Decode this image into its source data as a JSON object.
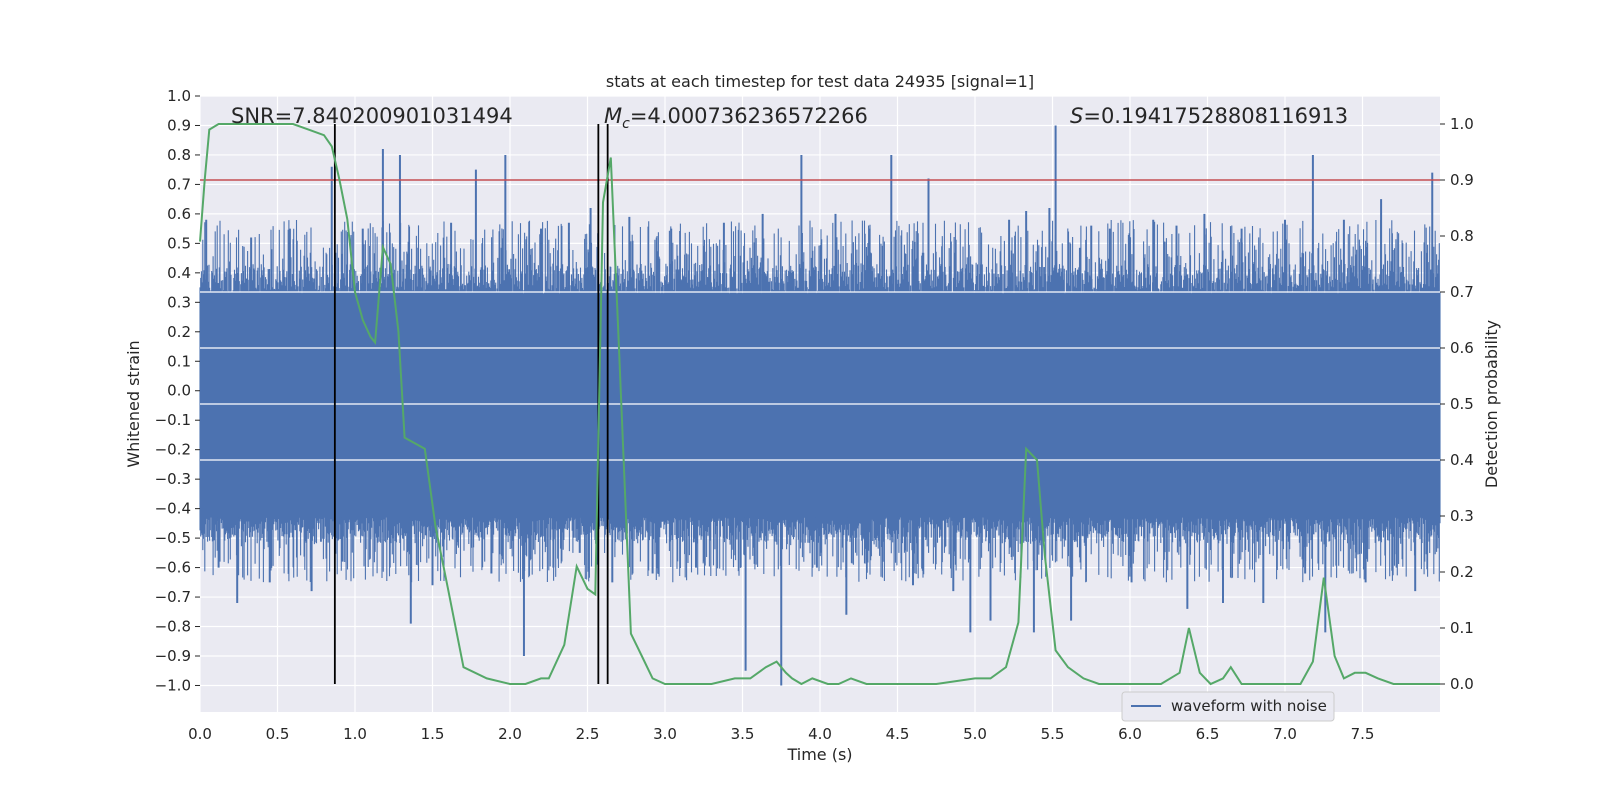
{
  "chart_data": {
    "type": "line",
    "title": "stats at each timestep for test data 24935 [signal=1]",
    "xlabel": "Time (s)",
    "ylabel": "Whitened strain",
    "y2label": "Detection probability",
    "xlim": [
      0.0,
      8.0
    ],
    "ylim": [
      -1.09,
      1.0
    ],
    "y2lim": [
      -0.05,
      1.05
    ],
    "xticks": [
      "0.0",
      "0.5",
      "1.0",
      "1.5",
      "2.0",
      "2.5",
      "3.0",
      "3.5",
      "4.0",
      "4.5",
      "5.0",
      "5.5",
      "6.0",
      "6.5",
      "7.0",
      "7.5"
    ],
    "yticks": [
      "1.0",
      "0.9",
      "0.8",
      "0.7",
      "0.6",
      "0.5",
      "0.4",
      "0.3",
      "0.2",
      "0.1",
      "0.0",
      "−0.1",
      "−0.2",
      "−0.3",
      "−0.4",
      "−0.5",
      "−0.6",
      "−0.7",
      "−0.8",
      "−0.9",
      "−1.0"
    ],
    "y2ticks": [
      "1.0",
      "0.9",
      "0.8",
      "0.7",
      "0.6",
      "0.5",
      "0.4",
      "0.3",
      "0.2",
      "0.1",
      "0.0"
    ],
    "grid": true,
    "legend_position": "lower-right",
    "annotations": {
      "snr": "SNR=7.840200901031494",
      "mc_symbol": "M",
      "mc_sub": "c",
      "mc_value": "=4.000736236572266",
      "s_symbol": "S",
      "s_value": "=0.19417528808116913"
    },
    "series": [
      {
        "name": "waveform with noise",
        "axis": "left",
        "color": "#4c72b0",
        "kind": "noise_waveform",
        "core_range": [
          -0.43,
          0.33
        ],
        "spikes": [
          [
            0.04,
            0.58
          ],
          [
            0.12,
            -0.6
          ],
          [
            0.24,
            -0.72
          ],
          [
            0.33,
            0.52
          ],
          [
            0.45,
            -0.65
          ],
          [
            0.58,
            0.55
          ],
          [
            0.72,
            -0.68
          ],
          [
            0.85,
            0.76
          ],
          [
            0.92,
            -0.58
          ],
          [
            1.05,
            0.55
          ],
          [
            1.18,
            0.82
          ],
          [
            1.29,
            0.8
          ],
          [
            1.36,
            -0.79
          ],
          [
            1.5,
            -0.66
          ],
          [
            1.62,
            0.57
          ],
          [
            1.78,
            0.75
          ],
          [
            1.88,
            -0.62
          ],
          [
            1.97,
            0.8
          ],
          [
            2.09,
            -0.9
          ],
          [
            2.2,
            0.55
          ],
          [
            2.28,
            -0.6
          ],
          [
            2.38,
            0.57
          ],
          [
            2.45,
            -0.55
          ],
          [
            2.52,
            0.62
          ],
          [
            2.66,
            -0.65
          ],
          [
            2.77,
            0.59
          ],
          [
            2.92,
            -0.62
          ],
          [
            3.04,
            0.55
          ],
          [
            3.2,
            -0.6
          ],
          [
            3.38,
            0.57
          ],
          [
            3.52,
            -0.95
          ],
          [
            3.63,
            0.6
          ],
          [
            3.75,
            -1.0
          ],
          [
            3.88,
            0.8
          ],
          [
            3.98,
            -0.6
          ],
          [
            4.1,
            0.6
          ],
          [
            4.17,
            -0.76
          ],
          [
            4.32,
            0.55
          ],
          [
            4.46,
            0.8
          ],
          [
            4.6,
            -0.66
          ],
          [
            4.7,
            0.72
          ],
          [
            4.86,
            -0.68
          ],
          [
            4.97,
            -0.82
          ],
          [
            5.1,
            -0.78
          ],
          [
            5.22,
            0.58
          ],
          [
            5.33,
            0.61
          ],
          [
            5.38,
            -0.82
          ],
          [
            5.48,
            0.62
          ],
          [
            5.52,
            0.9
          ],
          [
            5.62,
            -0.78
          ],
          [
            5.75,
            0.56
          ],
          [
            5.87,
            0.55
          ],
          [
            6.01,
            -0.65
          ],
          [
            6.15,
            0.58
          ],
          [
            6.3,
            0.56
          ],
          [
            6.37,
            -0.74
          ],
          [
            6.48,
            0.6
          ],
          [
            6.6,
            -0.72
          ],
          [
            6.72,
            0.55
          ],
          [
            6.86,
            -0.72
          ],
          [
            7.0,
            0.58
          ],
          [
            7.13,
            -0.62
          ],
          [
            7.18,
            0.8
          ],
          [
            7.26,
            -0.82
          ],
          [
            7.38,
            0.58
          ],
          [
            7.52,
            -0.65
          ],
          [
            7.62,
            0.65
          ],
          [
            7.72,
            -0.6
          ],
          [
            7.84,
            -0.68
          ],
          [
            7.95,
            0.74
          ]
        ]
      },
      {
        "name": "",
        "axis": "right",
        "color": "#55a868",
        "x": [
          0.0,
          0.03,
          0.06,
          0.12,
          0.2,
          0.3,
          0.45,
          0.6,
          0.7,
          0.8,
          0.85,
          0.9,
          0.95,
          1.0,
          1.05,
          1.1,
          1.13,
          1.18,
          1.23,
          1.28,
          1.32,
          1.45,
          1.52,
          1.6,
          1.7,
          1.85,
          2.0,
          2.1,
          2.2,
          2.25,
          2.35,
          2.43,
          2.5,
          2.55,
          2.6,
          2.65,
          2.7,
          2.78,
          2.85,
          2.92,
          3.0,
          3.15,
          3.3,
          3.45,
          3.55,
          3.65,
          3.72,
          3.78,
          3.82,
          3.88,
          3.95,
          4.05,
          4.12,
          4.2,
          4.3,
          4.5,
          4.75,
          5.0,
          5.1,
          5.2,
          5.28,
          5.33,
          5.4,
          5.45,
          5.52,
          5.6,
          5.7,
          5.8,
          6.0,
          6.2,
          6.32,
          6.38,
          6.45,
          6.52,
          6.6,
          6.65,
          6.72,
          6.8,
          7.0,
          7.1,
          7.18,
          7.25,
          7.32,
          7.38,
          7.45,
          7.52,
          7.6,
          7.7,
          7.8,
          7.9,
          8.0
        ],
        "y": [
          0.79,
          0.9,
          0.99,
          1.0,
          1.0,
          1.0,
          1.0,
          1.0,
          0.99,
          0.98,
          0.96,
          0.9,
          0.83,
          0.7,
          0.65,
          0.62,
          0.61,
          0.78,
          0.75,
          0.63,
          0.44,
          0.42,
          0.28,
          0.17,
          0.03,
          0.01,
          0.0,
          0.0,
          0.01,
          0.01,
          0.07,
          0.21,
          0.17,
          0.16,
          0.86,
          0.94,
          0.62,
          0.09,
          0.05,
          0.01,
          0.0,
          0.0,
          0.0,
          0.01,
          0.01,
          0.03,
          0.04,
          0.02,
          0.01,
          0.0,
          0.01,
          0.0,
          0.0,
          0.01,
          0.0,
          0.0,
          0.0,
          0.01,
          0.01,
          0.03,
          0.11,
          0.42,
          0.4,
          0.23,
          0.06,
          0.03,
          0.01,
          0.0,
          0.0,
          0.0,
          0.02,
          0.1,
          0.02,
          0.0,
          0.01,
          0.03,
          0.0,
          0.0,
          0.0,
          0.0,
          0.04,
          0.19,
          0.05,
          0.01,
          0.02,
          0.02,
          0.01,
          0.0,
          0.0,
          0.0,
          0.0
        ]
      }
    ],
    "threshold_line": {
      "axis": "left",
      "value": 0.715,
      "color": "#c44e52"
    },
    "vertical_lines": {
      "axis": "right",
      "x": [
        0.87,
        2.57,
        2.63
      ],
      "y_range": [
        0.0,
        1.0
      ],
      "color": "#000000"
    }
  }
}
